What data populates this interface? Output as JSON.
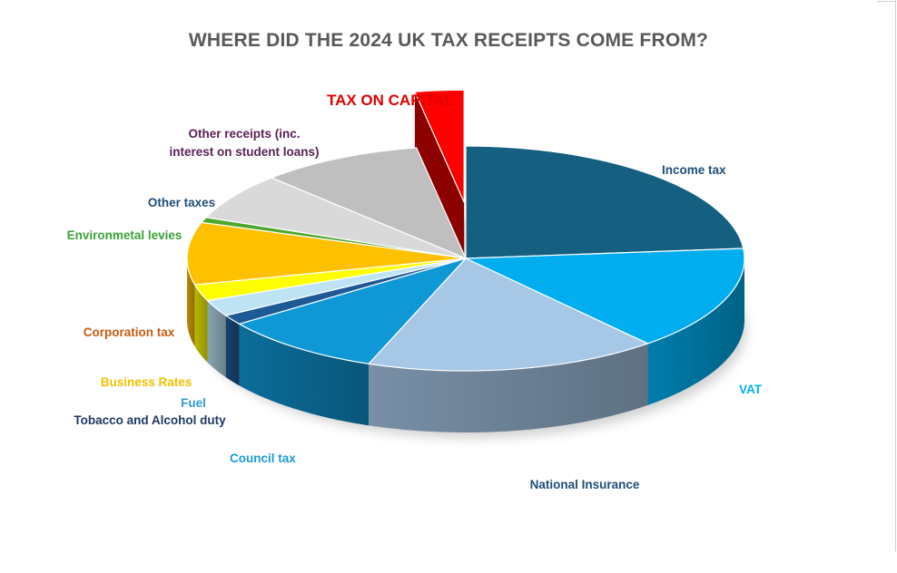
{
  "chart_data": {
    "type": "pie",
    "title": "WHERE DID THE 2024 UK TAX RECEIPTS COME FROM?",
    "unit": "",
    "slices": [
      {
        "label": "Income tax",
        "value": 25.0,
        "color": "#155F80",
        "label_color": "#1F4E79"
      },
      {
        "label": "VAT",
        "value": 16.0,
        "color": "#00ADEF",
        "label_color": "#00B0F0"
      },
      {
        "label": "National Insurance",
        "value": 18.0,
        "color": "#A7C7E7",
        "label_color": "#1F4E79"
      },
      {
        "label": "Council tax",
        "value": 10.0,
        "color": "#0F98D6",
        "label_color": "#1A9BD7"
      },
      {
        "label": "Tobacco and Alcohol duty",
        "value": 1.5,
        "color": "#1E5A96",
        "label_color": "#1F3864"
      },
      {
        "label": "Fuel",
        "value": 2.5,
        "color": "#BDE3F5",
        "label_color": "#2E9BD6"
      },
      {
        "label": "Business Rates",
        "value": 2.5,
        "color": "#FFFF00",
        "label_color": "#F0C000"
      },
      {
        "label": "Corporation tax",
        "value": 9.5,
        "color": "#FFC000",
        "label_color": "#C55A11"
      },
      {
        "label": "Environmetal levies",
        "value": 0.8,
        "color": "#4EA72E",
        "label_color": "#3AA33A"
      },
      {
        "label": "Other taxes",
        "value": 7.2,
        "color": "#D9D9D9",
        "label_color": "#1F4E79"
      },
      {
        "label": "Other receipts (inc. interest on student loans)",
        "value": 10.0,
        "color": "#BFBFBF",
        "label_color": "#5B2157"
      },
      {
        "label": "TAX ON CAPITAL",
        "value": 3.0,
        "color": "#FF0000",
        "label_color": "#E00000",
        "exploded": true
      }
    ],
    "legend": "none",
    "data_labels": "category names"
  }
}
